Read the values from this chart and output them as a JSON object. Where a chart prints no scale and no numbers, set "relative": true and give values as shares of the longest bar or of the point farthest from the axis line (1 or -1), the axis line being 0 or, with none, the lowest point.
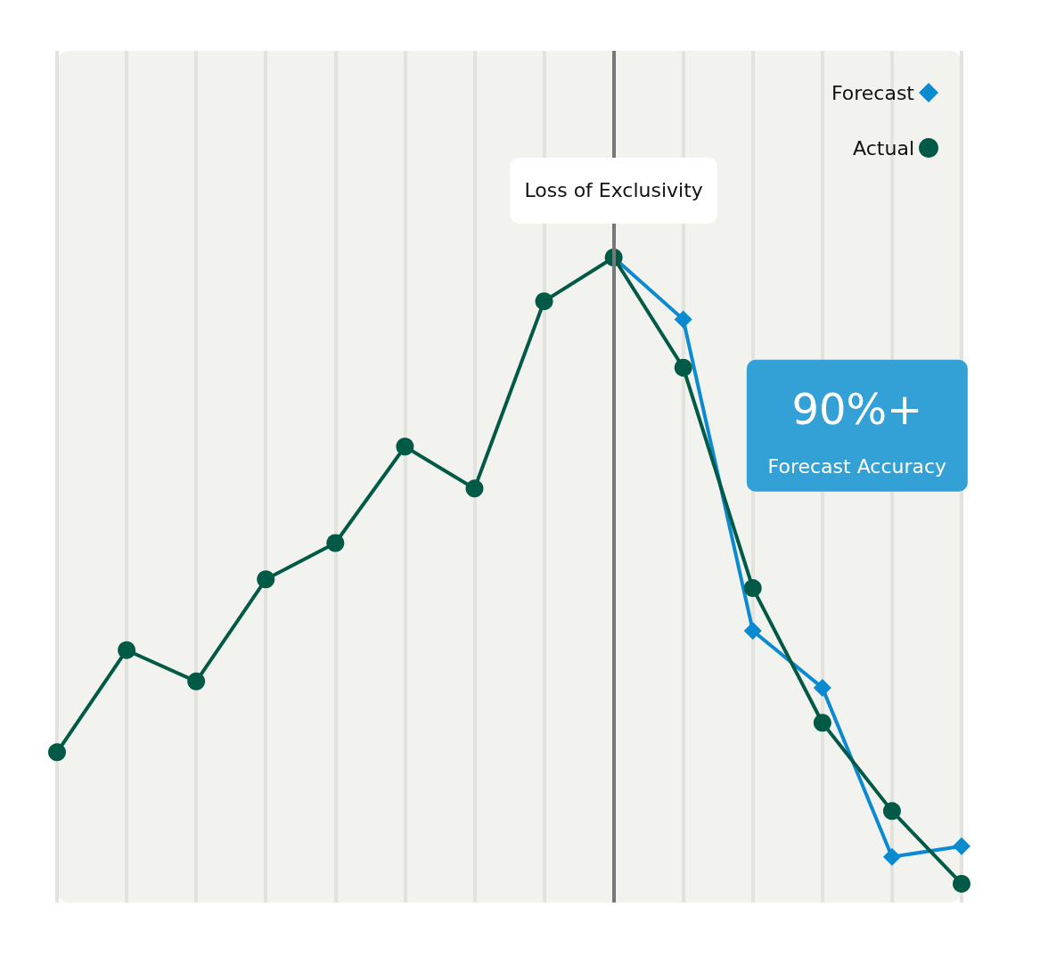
{
  "chart_data": {
    "type": "line",
    "relative": true,
    "categories": [
      null,
      null,
      null,
      null,
      null,
      null,
      null,
      null,
      null,
      null,
      null,
      null,
      null,
      null
    ],
    "series": [
      {
        "name": "Forecast",
        "color": "#0a8ad0",
        "marker": "diamond",
        "values": [
          null,
          null,
          null,
          null,
          null,
          null,
          null,
          null,
          1,
          0.901,
          0.404,
          0.313,
          0.043,
          0.06
        ]
      },
      {
        "name": "Actual",
        "color": "#005a46",
        "marker": "circle",
        "values": [
          0.21,
          0.373,
          0.323,
          0.486,
          0.544,
          0.698,
          0.631,
          0.93,
          1,
          0.824,
          0.472,
          0.257,
          0.116,
          0
        ]
      }
    ],
    "annotations": [
      "Loss of Exclusivity",
      "90%+",
      "Forecast Accuracy"
    ],
    "grid": "x",
    "legend": "top right",
    "line_style": "solid"
  }
}
